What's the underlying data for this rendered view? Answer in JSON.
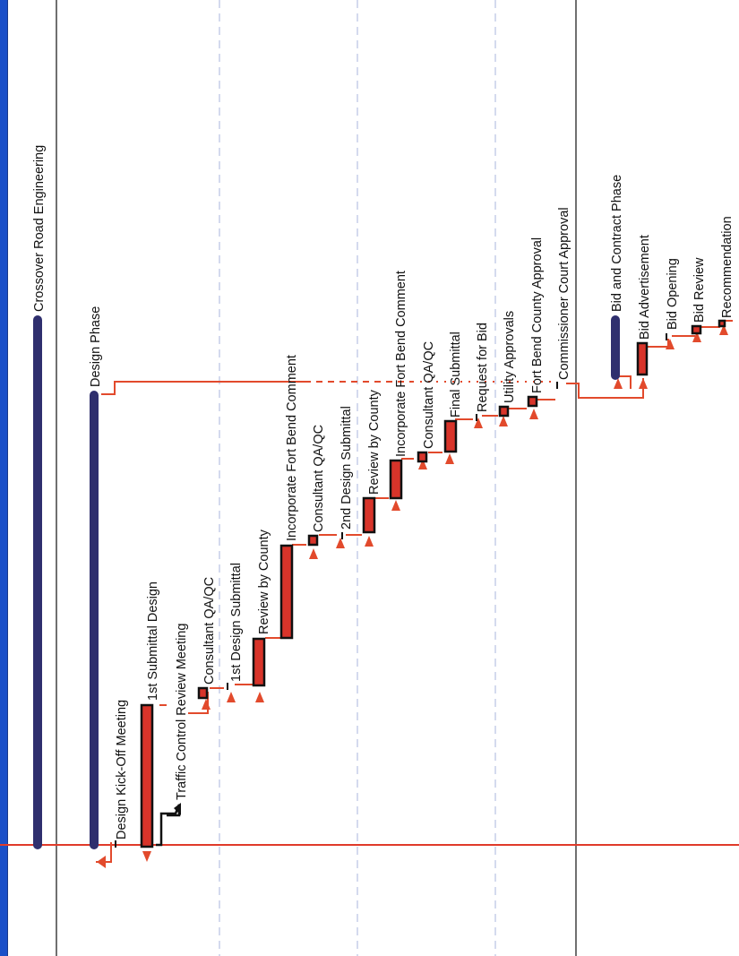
{
  "colors": {
    "summary_bar": "#2f2f6e",
    "task_fill": "#d8342a",
    "task_border": "#111111",
    "dependency_line": "#e24a2c",
    "today_line": "#e03a2a",
    "column_border": "#222222",
    "column_divider": "#aab4de",
    "left_stripe": "#1a50c8"
  },
  "tasks": [
    {
      "id": "crossover-road-engineering",
      "label": "Crossover Road Engineering",
      "type": "summary"
    },
    {
      "id": "design-phase",
      "label": "Design Phase",
      "type": "summary"
    },
    {
      "id": "design-kickoff",
      "label": "Design Kick-Off Meeting",
      "type": "milestone"
    },
    {
      "id": "1st-submittal-design",
      "label": "1st Submittal Design",
      "type": "task"
    },
    {
      "id": "traffic-control-review",
      "label": "Traffic Control Review Meeting",
      "type": "milestone"
    },
    {
      "id": "consultant-qaqc-1",
      "label": "Consultant QA/QC",
      "type": "task"
    },
    {
      "id": "1st-design-submittal",
      "label": "1st Design Submittal",
      "type": "milestone"
    },
    {
      "id": "review-by-county-1",
      "label": "Review by County",
      "type": "task"
    },
    {
      "id": "incorporate-fbc-1",
      "label": "Incorporate Fort Bend Comment",
      "type": "task"
    },
    {
      "id": "consultant-qaqc-2",
      "label": "Consultant QA/QC",
      "type": "task"
    },
    {
      "id": "2nd-design-submittal",
      "label": "2nd Design Submittal",
      "type": "milestone"
    },
    {
      "id": "review-by-county-2",
      "label": "Review by County",
      "type": "task"
    },
    {
      "id": "incorporate-fbc-2",
      "label": "Incorporate Fort Bend Comment",
      "type": "task"
    },
    {
      "id": "consultant-qaqc-3",
      "label": "Consultant QA/QC",
      "type": "task"
    },
    {
      "id": "final-submittal",
      "label": "Final Submittal",
      "type": "task"
    },
    {
      "id": "request-for-bid",
      "label": "Request for Bid",
      "type": "milestone"
    },
    {
      "id": "utility-approvals",
      "label": "Utility Approvals",
      "type": "task"
    },
    {
      "id": "fort-bend-county-approval",
      "label": "Fort Bend County Approval",
      "type": "task"
    },
    {
      "id": "commissioner-court-approval",
      "label": "Commissioner Court Approval",
      "type": "milestone"
    },
    {
      "id": "bid-and-contract-phase",
      "label": "Bid and Contract Phase",
      "type": "summary"
    },
    {
      "id": "bid-advertisement",
      "label": "Bid Advertisement",
      "type": "task"
    },
    {
      "id": "bid-opening",
      "label": "Bid Opening",
      "type": "milestone"
    },
    {
      "id": "bid-review",
      "label": "Bid Review",
      "type": "task"
    },
    {
      "id": "recommendation",
      "label": "Recommendation",
      "type": "task"
    }
  ]
}
